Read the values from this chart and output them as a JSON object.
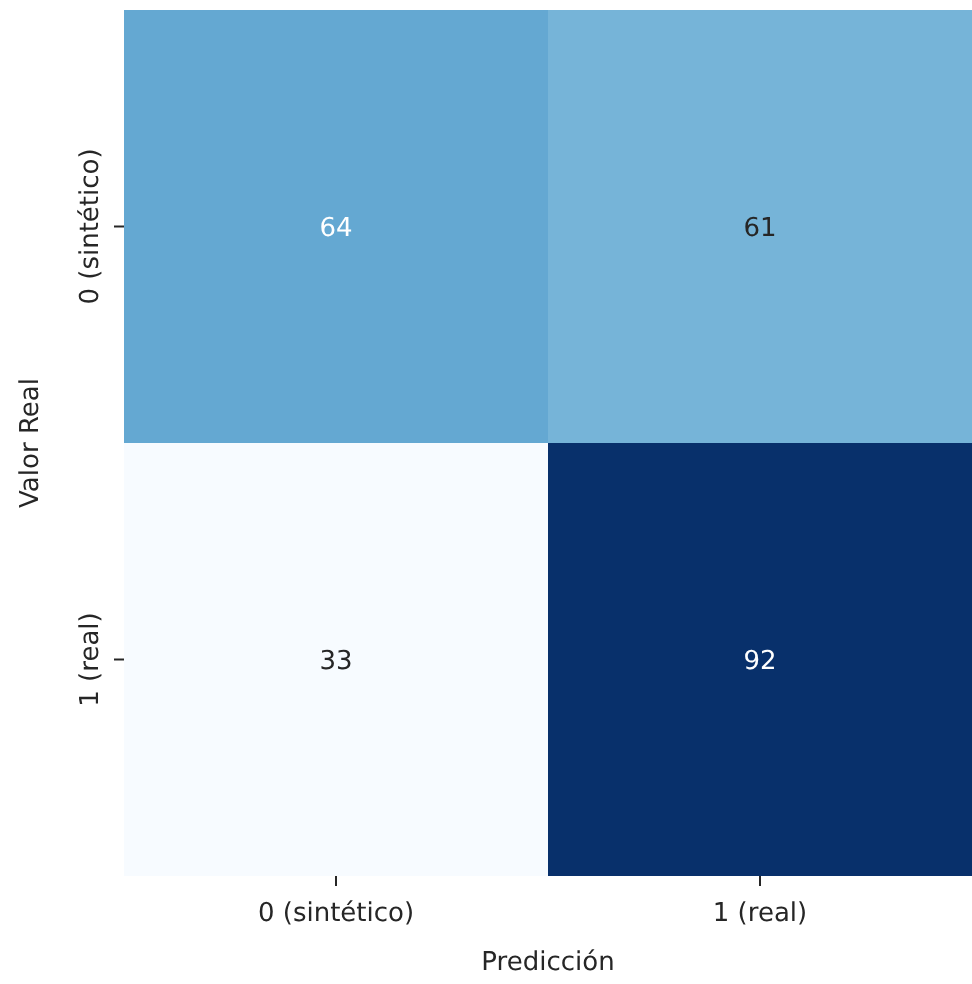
{
  "chart_data": {
    "type": "heatmap",
    "xlabel": "Predicción",
    "ylabel": "Valor Real",
    "categories": [
      "0 (sintético)",
      "1 (real)"
    ],
    "y_categories": [
      "0 (sintético)",
      "1 (real)"
    ],
    "cells": [
      [
        64,
        61
      ],
      [
        33,
        92
      ]
    ],
    "data_labels": true
  }
}
